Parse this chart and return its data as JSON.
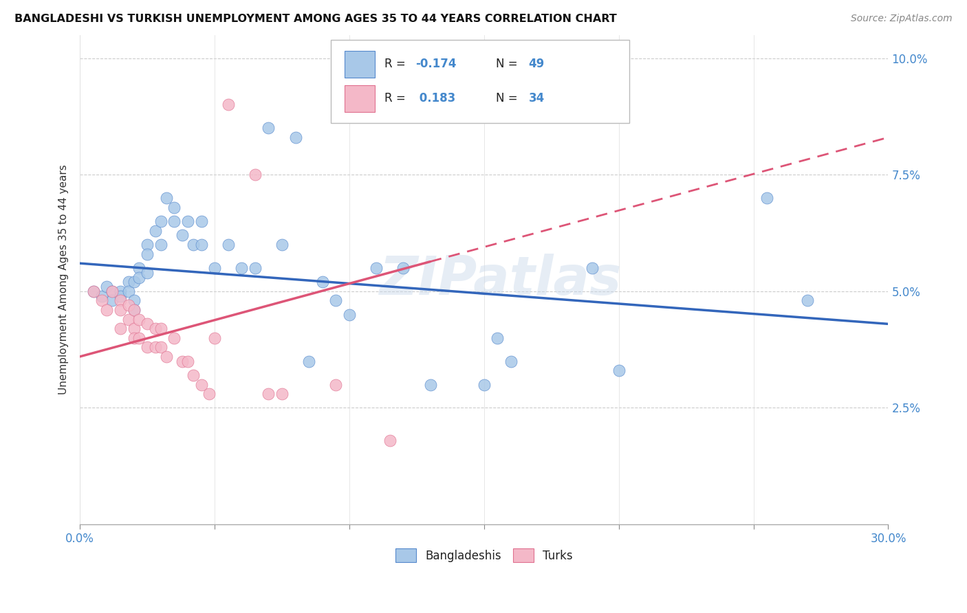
{
  "title": "BANGLADESHI VS TURKISH UNEMPLOYMENT AMONG AGES 35 TO 44 YEARS CORRELATION CHART",
  "source": "Source: ZipAtlas.com",
  "ylabel": "Unemployment Among Ages 35 to 44 years",
  "xlim": [
    0.0,
    0.3
  ],
  "ylim": [
    0.0,
    0.105
  ],
  "xticks": [
    0.0,
    0.05,
    0.1,
    0.15,
    0.2,
    0.25,
    0.3
  ],
  "xticklabels": [
    "0.0%",
    "",
    "",
    "",
    "",
    "",
    "30.0%"
  ],
  "yticks": [
    0.0,
    0.025,
    0.05,
    0.075,
    0.1
  ],
  "yticklabels": [
    "",
    "2.5%",
    "5.0%",
    "7.5%",
    "10.0%"
  ],
  "blue_R": -0.174,
  "blue_N": 49,
  "pink_R": 0.183,
  "pink_N": 34,
  "blue_color": "#a8c8e8",
  "pink_color": "#f4b8c8",
  "blue_edge_color": "#5588cc",
  "pink_edge_color": "#e07090",
  "blue_line_color": "#3366bb",
  "pink_line_color": "#dd5577",
  "watermark": "ZIPatlas",
  "legend_label_blue": "Bangladeshis",
  "legend_label_pink": "Turks",
  "blue_scatter_x": [
    0.005,
    0.008,
    0.01,
    0.012,
    0.012,
    0.015,
    0.015,
    0.018,
    0.018,
    0.02,
    0.02,
    0.02,
    0.022,
    0.022,
    0.025,
    0.025,
    0.025,
    0.028,
    0.03,
    0.03,
    0.032,
    0.035,
    0.035,
    0.038,
    0.04,
    0.042,
    0.045,
    0.045,
    0.05,
    0.055,
    0.06,
    0.065,
    0.07,
    0.075,
    0.08,
    0.085,
    0.09,
    0.095,
    0.1,
    0.11,
    0.12,
    0.13,
    0.15,
    0.155,
    0.16,
    0.19,
    0.2,
    0.255,
    0.27
  ],
  "blue_scatter_y": [
    0.05,
    0.049,
    0.051,
    0.05,
    0.048,
    0.05,
    0.049,
    0.052,
    0.05,
    0.052,
    0.048,
    0.046,
    0.055,
    0.053,
    0.06,
    0.058,
    0.054,
    0.063,
    0.065,
    0.06,
    0.07,
    0.068,
    0.065,
    0.062,
    0.065,
    0.06,
    0.065,
    0.06,
    0.055,
    0.06,
    0.055,
    0.055,
    0.085,
    0.06,
    0.083,
    0.035,
    0.052,
    0.048,
    0.045,
    0.055,
    0.055,
    0.03,
    0.03,
    0.04,
    0.035,
    0.055,
    0.033,
    0.07,
    0.048
  ],
  "pink_scatter_x": [
    0.005,
    0.008,
    0.01,
    0.012,
    0.015,
    0.015,
    0.015,
    0.018,
    0.018,
    0.02,
    0.02,
    0.02,
    0.022,
    0.022,
    0.025,
    0.025,
    0.028,
    0.028,
    0.03,
    0.03,
    0.032,
    0.035,
    0.038,
    0.04,
    0.042,
    0.045,
    0.048,
    0.05,
    0.055,
    0.065,
    0.07,
    0.075,
    0.095,
    0.115
  ],
  "pink_scatter_y": [
    0.05,
    0.048,
    0.046,
    0.05,
    0.048,
    0.046,
    0.042,
    0.047,
    0.044,
    0.046,
    0.042,
    0.04,
    0.044,
    0.04,
    0.043,
    0.038,
    0.042,
    0.038,
    0.042,
    0.038,
    0.036,
    0.04,
    0.035,
    0.035,
    0.032,
    0.03,
    0.028,
    0.04,
    0.09,
    0.075,
    0.028,
    0.028,
    0.03,
    0.018
  ],
  "blue_trend_x0": 0.0,
  "blue_trend_x1": 0.3,
  "blue_trend_y0": 0.056,
  "blue_trend_y1": 0.043,
  "pink_trend_x0": 0.0,
  "pink_trend_x1": 0.3,
  "pink_trend_y0": 0.036,
  "pink_trend_y1": 0.083
}
